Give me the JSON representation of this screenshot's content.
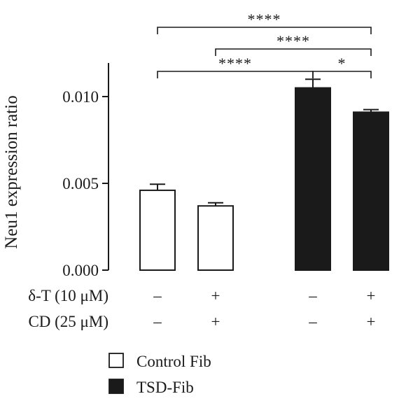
{
  "chart_data": {
    "type": "bar",
    "ylabel": "Neu1 expression ratio",
    "ylim": [
      0,
      0.012
    ],
    "yticks": [
      {
        "value": 0.0,
        "label": "0.000"
      },
      {
        "value": 0.005,
        "label": "0.005"
      },
      {
        "value": 0.01,
        "label": "0.010"
      }
    ],
    "bars": [
      {
        "group": "Control Fib",
        "value": 0.0046,
        "error": 0.00035,
        "fill": "#ffffff"
      },
      {
        "group": "Control Fib",
        "value": 0.0037,
        "error": 0.00018,
        "fill": "#ffffff"
      },
      {
        "group": "TSD-Fib",
        "value": 0.0105,
        "error": 0.0005,
        "fill": "#1a1a1a"
      },
      {
        "group": "TSD-Fib",
        "value": 0.0091,
        "error": 0.00015,
        "fill": "#1a1a1a"
      }
    ],
    "conditions": [
      {
        "label": "δ-T (10 μM)",
        "values": [
          "–",
          "+",
          "–",
          "+"
        ]
      },
      {
        "label": "CD (25 μM)",
        "values": [
          "–",
          "+",
          "–",
          "+"
        ]
      }
    ],
    "significance": [
      {
        "from": 0,
        "to": 3,
        "label": "****"
      },
      {
        "from": 1,
        "to": 3,
        "label": "****"
      },
      {
        "from": 0,
        "to": 2,
        "label": "****"
      },
      {
        "from": 2,
        "to": 3,
        "label": "*"
      }
    ],
    "legend": [
      {
        "name": "Control Fib",
        "fill": "#ffffff"
      },
      {
        "name": "TSD-Fib",
        "fill": "#1a1a1a"
      }
    ],
    "legend_position": "bottom-left"
  }
}
